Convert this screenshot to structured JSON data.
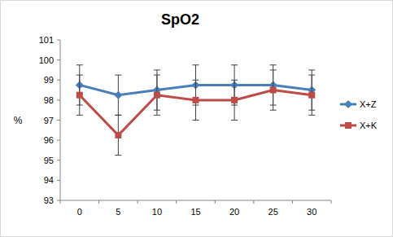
{
  "chart_data": {
    "type": "line",
    "title": "SpO2",
    "y_label": "%",
    "categories": [
      "0",
      "5",
      "10",
      "15",
      "20",
      "25",
      "30"
    ],
    "series": [
      {
        "name": "X+Z",
        "color": "#4a7ebb",
        "marker": "diamond",
        "values": [
          98.75,
          98.25,
          98.5,
          98.75,
          98.75,
          98.75,
          98.5
        ],
        "errors": [
          1,
          1,
          1,
          1,
          1,
          1,
          1
        ]
      },
      {
        "name": "X+K",
        "color": "#be4b48",
        "marker": "square",
        "values": [
          98.25,
          96.25,
          98.25,
          98,
          98,
          98.5,
          98.25
        ],
        "errors": [
          1,
          1,
          1,
          1,
          1,
          1,
          1
        ]
      }
    ],
    "ylim": [
      93,
      101
    ],
    "yticks": [
      93,
      94,
      95,
      96,
      97,
      98,
      99,
      100,
      101
    ],
    "grid": false,
    "legend": "right"
  }
}
